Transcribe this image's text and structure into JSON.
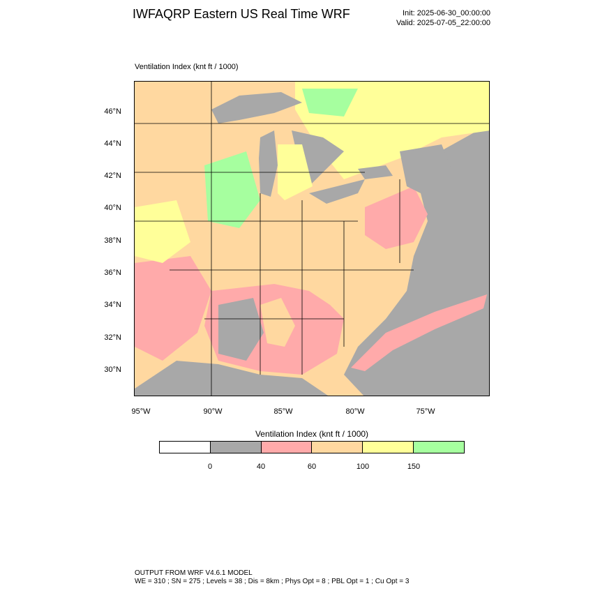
{
  "title": "IWFAQRP Eastern US Real Time WRF",
  "init": "Init: 2025-06-30_00:00:00",
  "valid": "Valid: 2025-07-05_22:00:00",
  "field_title": "Ventilation Index   (knt ft / 1000)",
  "lat_labels": [
    "46°N",
    "44°N",
    "42°N",
    "40°N",
    "38°N",
    "36°N",
    "34°N",
    "32°N",
    "30°N"
  ],
  "lon_labels": [
    "95°W",
    "90°W",
    "85°W",
    "80°W",
    "75°W"
  ],
  "colorbar": {
    "title": "Ventilation Index  (knt ft / 1000)",
    "colors": [
      "#ffffff",
      "#a8a8a8",
      "#ffaaaa",
      "#ffd8a0",
      "#ffff99",
      "#a6ff9f"
    ],
    "labels": [
      "0",
      "40",
      "60",
      "100",
      "150"
    ]
  },
  "footer": {
    "line1": "OUTPUT FROM WRF V4.6.1 MODEL",
    "line2": "WE = 310 ; SN = 275 ; Levels = 38 ; Dis = 8km ; Phys Opt = 8 ; PBL Opt = 1 ; Cu Opt = 3"
  }
}
